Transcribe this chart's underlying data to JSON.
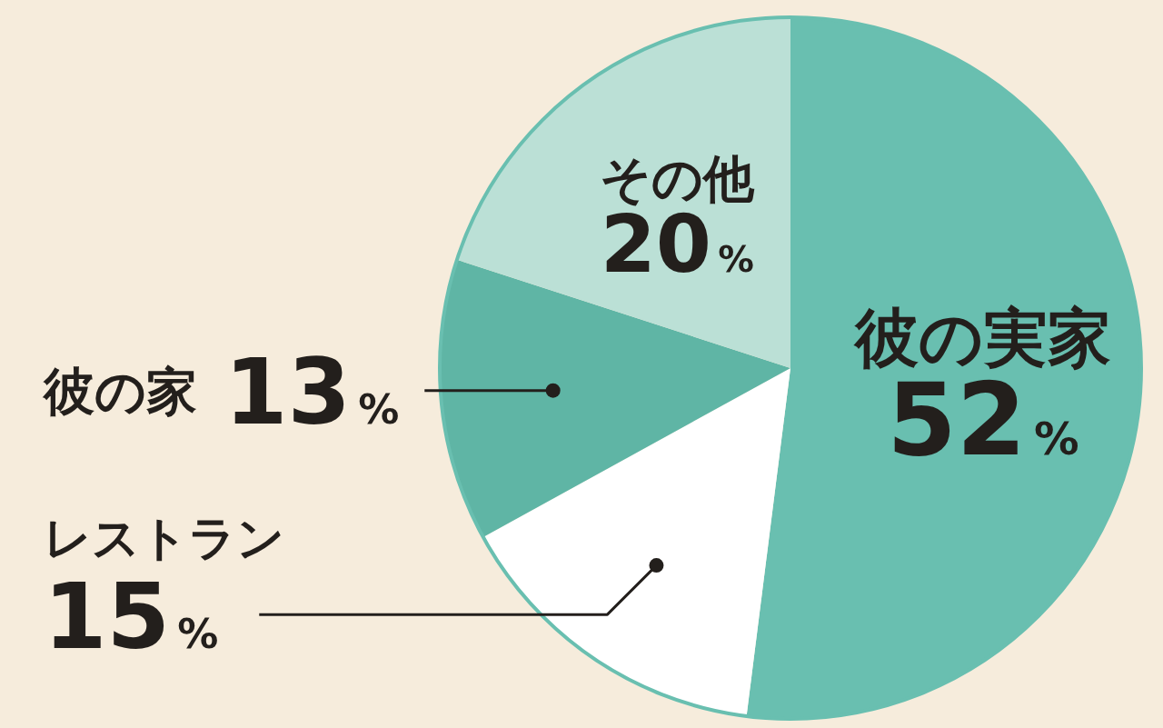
{
  "chart_data": {
    "type": "pie",
    "categories": [
      "彼の実家",
      "レストラン",
      "彼の家",
      "その他"
    ],
    "values": [
      52,
      15,
      13,
      20
    ],
    "colors": [
      "#69bfb0",
      "#ffffff",
      "#5fb5a5",
      "#bbe0d6"
    ],
    "value_labels": [
      "52%",
      "15%",
      "13%",
      "20%"
    ]
  }
}
